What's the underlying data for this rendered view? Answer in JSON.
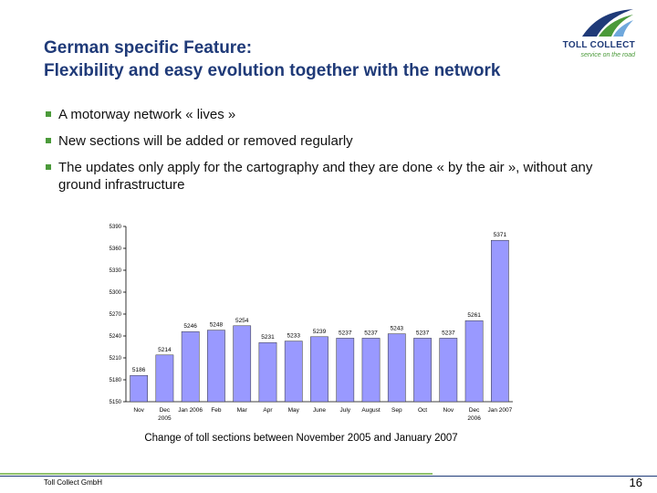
{
  "title": {
    "line1": "German specific Feature:",
    "line2": "Flexibility and easy evolution together with the network"
  },
  "logo": {
    "name": "TOLL COLLECT",
    "tagline": "service on the road"
  },
  "bullets": [
    "A motorway network « lives »",
    "New sections will be added or removed regularly",
    "The updates only apply for the cartography and they are done « by the air », without any ground infrastructure"
  ],
  "chart_data": {
    "type": "bar",
    "categories": [
      [
        "Nov"
      ],
      [
        "Dec",
        "2005"
      ],
      [
        "Jan 2006"
      ],
      [
        "Feb"
      ],
      [
        "Mar"
      ],
      [
        "Apr"
      ],
      [
        "May"
      ],
      [
        "June"
      ],
      [
        "July"
      ],
      [
        "August"
      ],
      [
        "Sep"
      ],
      [
        "Oct"
      ],
      [
        "Nov"
      ],
      [
        "Dec",
        "2006"
      ],
      [
        "Jan 2007"
      ]
    ],
    "values": [
      5186,
      5214,
      5246,
      5248,
      5254,
      5231,
      5233,
      5239,
      5237,
      5237,
      5243,
      5237,
      5237,
      5261,
      5371
    ],
    "value_labels": [
      "5186",
      "5214",
      "5246",
      "5248",
      "5254",
      "5231",
      "5233",
      "5239",
      "5237",
      "5237",
      "5243",
      "5237",
      "5237",
      "5261",
      "5371"
    ],
    "ylim": [
      5150,
      5390
    ],
    "yticks": [
      5150,
      5180,
      5210,
      5240,
      5270,
      5300,
      5330,
      5360,
      5390
    ],
    "ytick_labels": [
      "5150",
      "5180",
      "5210",
      "5240",
      "5270",
      "5300",
      "5330",
      "5360",
      "5390"
    ],
    "title": "",
    "xlabel": "",
    "ylabel": "",
    "bar_color": "#9999ff",
    "grid": false,
    "legend": "none"
  },
  "caption": "Change of toll sections between November 2005 and January 2007",
  "footer": {
    "company": "Toll Collect GmbH",
    "page": "16"
  },
  "colors": {
    "title": "#1f3a78",
    "accent": "#4b9a3a",
    "footer_green": "#8fc06c"
  }
}
